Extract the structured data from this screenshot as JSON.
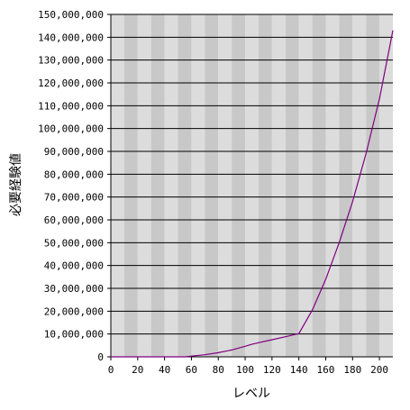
{
  "chart_data": {
    "type": "line",
    "title": "",
    "xlabel": "レベル",
    "ylabel": "必要経験値",
    "xlim": [
      0,
      210
    ],
    "ylim": [
      0,
      150000000
    ],
    "x_ticks": [
      0,
      20,
      40,
      60,
      80,
      100,
      120,
      140,
      160,
      180,
      200
    ],
    "x_tick_labels": [
      "0",
      "20",
      "40",
      "60",
      "80",
      "100",
      "120",
      "140",
      "160",
      "180",
      "200"
    ],
    "y_ticks": [
      0,
      10000000,
      20000000,
      30000000,
      40000000,
      50000000,
      60000000,
      70000000,
      80000000,
      90000000,
      100000000,
      110000000,
      120000000,
      130000000,
      140000000,
      150000000
    ],
    "y_tick_labels": [
      "0",
      "10,000,000",
      "20,000,000",
      "30,000,000",
      "40,000,000",
      "50,000,000",
      "60,000,000",
      "70,000,000",
      "80,000,000",
      "90,000,000",
      "100,000,000",
      "110,000,000",
      "120,000,000",
      "130,000,000",
      "140,000,000",
      "150,000,000"
    ],
    "grid": true,
    "legend": false,
    "colors": {
      "line": "#800080",
      "band_light": "#dcdcdc",
      "band_dark": "#c8c8c8",
      "gridline": "#000000"
    },
    "series": [
      {
        "x": [
          0,
          20,
          40,
          55,
          60,
          70,
          80,
          90,
          100,
          105,
          110,
          120,
          130,
          140,
          150,
          160,
          170,
          180,
          190,
          200,
          210
        ],
        "values": [
          0,
          0,
          0,
          0,
          300000,
          900000,
          1800000,
          3000000,
          4600000,
          5500000,
          6200000,
          7500000,
          8800000,
          10200000,
          20500000,
          34000000,
          50000000,
          68000000,
          89000000,
          113000000,
          143000000
        ]
      }
    ]
  }
}
